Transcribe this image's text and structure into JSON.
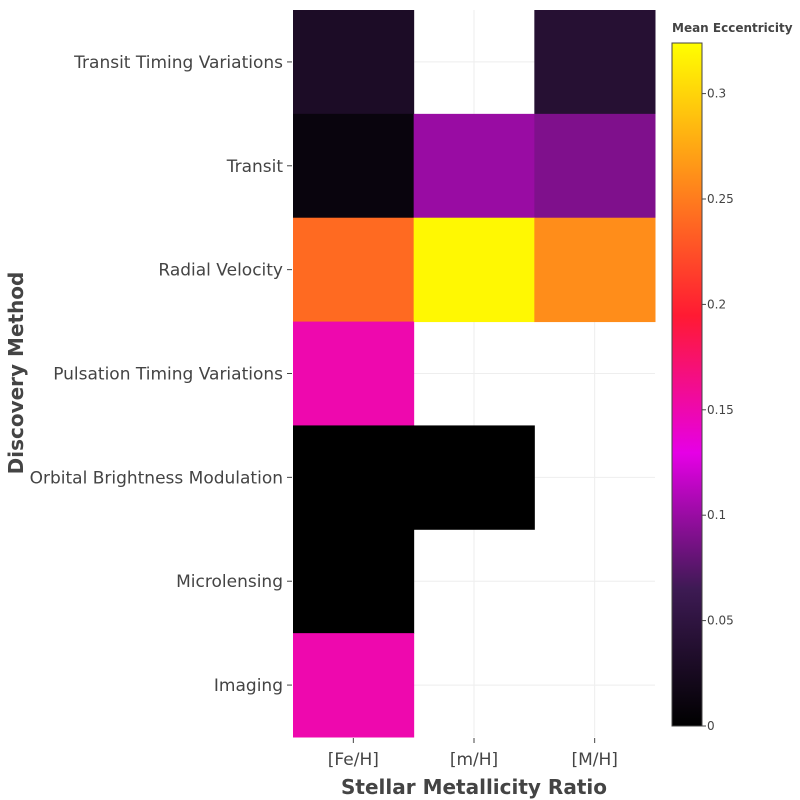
{
  "chart_data": {
    "type": "heatmap",
    "title": "",
    "xlabel": "Stellar Metallicity Ratio",
    "ylabel": "Discovery Method",
    "x_categories": [
      "[Fe/H]",
      "[m/H]",
      "[M/H]"
    ],
    "y_categories": [
      "Transit Timing Variations",
      "Transit",
      "Radial Velocity",
      "Pulsation Timing Variations",
      "Orbital Brightness Modulation",
      "Microlensing",
      "Imaging"
    ],
    "values": [
      [
        0.03,
        null,
        0.04
      ],
      [
        0.01,
        0.1,
        0.09
      ],
      [
        0.24,
        0.32,
        0.26
      ],
      [
        0.15,
        null,
        null
      ],
      [
        0.0,
        0.0,
        null
      ],
      [
        0.0,
        null,
        null
      ],
      [
        0.15,
        null,
        null
      ]
    ],
    "colorbar": {
      "title": "Mean Eccentricity",
      "range": [
        0,
        0.324
      ],
      "ticks": [
        0,
        0.05,
        0.1,
        0.15,
        0.2,
        0.25,
        0.3
      ],
      "tick_labels": [
        "0",
        "0.05",
        "0.1",
        "0.15",
        "0.2",
        "0.25",
        "0.3"
      ]
    },
    "colorscale": "black-purple-magenta-red-orange-yellow",
    "grid": true,
    "colors": {
      "grid": "#eeeeee",
      "text": "#444444",
      "stops": [
        "#000000",
        "#3d1a53",
        "#e600e6",
        "#ff1a33",
        "#ff8c1a",
        "#ffff00"
      ]
    }
  }
}
